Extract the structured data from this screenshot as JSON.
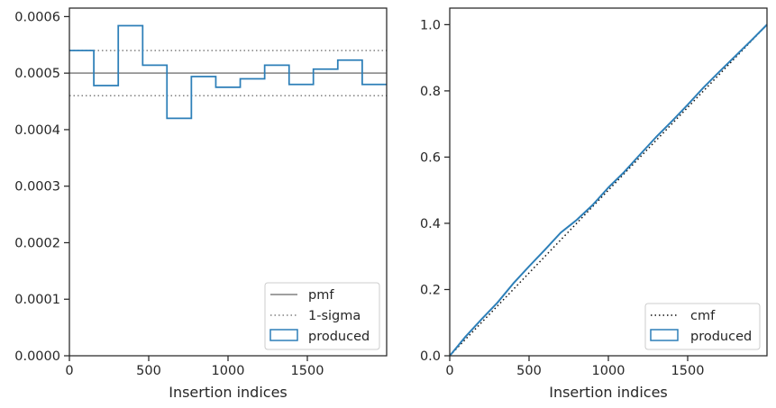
{
  "chart_data": [
    {
      "type": "histogram-step",
      "xlabel": "Insertion indices",
      "ylabel": "",
      "xlim": [
        0,
        2000
      ],
      "ylim": [
        0,
        0.000615
      ],
      "x_ticks": [
        0,
        500,
        1000,
        1500
      ],
      "x_tick_labels": [
        "0",
        "500",
        "1000",
        "1500"
      ],
      "y_ticks": [
        0,
        0.0001,
        0.0002,
        0.0003,
        0.0004,
        0.0005,
        0.0006
      ],
      "y_tick_labels": [
        "0.0000",
        "0.0001",
        "0.0002",
        "0.0003",
        "0.0004",
        "0.0005",
        "0.0006"
      ],
      "bin_edges": [
        0,
        154,
        308,
        462,
        615,
        769,
        923,
        1077,
        1231,
        1385,
        1538,
        1692,
        1846,
        2000
      ],
      "series": [
        {
          "name": "produced",
          "style": "step",
          "color": "#2d7fb8",
          "values": [
            0.00054,
            0.000478,
            0.000584,
            0.000514,
            0.00042,
            0.000494,
            0.000475,
            0.00049,
            0.000514,
            0.00048,
            0.000507,
            0.000523,
            0.00048
          ]
        },
        {
          "name": "pmf",
          "style": "solid",
          "color": "#808080",
          "values": [
            0.0005
          ]
        },
        {
          "name": "1-sigma",
          "style": "dotted",
          "color": "#808080",
          "values": [
            0.00054,
            0.00046
          ]
        }
      ],
      "legend": {
        "position": "lower right",
        "entries": [
          "pmf",
          "1-sigma",
          "produced"
        ]
      },
      "grid": false
    },
    {
      "type": "line",
      "xlabel": "Insertion indices",
      "ylabel": "",
      "xlim": [
        0,
        2000
      ],
      "ylim": [
        0,
        1.05
      ],
      "x_ticks": [
        0,
        500,
        1000,
        1500
      ],
      "x_tick_labels": [
        "0",
        "500",
        "1000",
        "1500"
      ],
      "y_ticks": [
        0,
        0.2,
        0.4,
        0.6,
        0.8,
        1.0
      ],
      "y_tick_labels": [
        "0.0",
        "0.2",
        "0.4",
        "0.6",
        "0.8",
        "1.0"
      ],
      "series": [
        {
          "name": "cmf",
          "style": "dotted",
          "color": "#111111",
          "x": [
            0,
            2000
          ],
          "y": [
            0,
            1.0
          ]
        },
        {
          "name": "produced",
          "style": "solid",
          "color": "#2d7fb8",
          "x": [
            0,
            100,
            200,
            300,
            400,
            500,
            600,
            700,
            800,
            900,
            1000,
            1100,
            1200,
            1300,
            1400,
            1500,
            1600,
            1700,
            1800,
            1900,
            2000
          ],
          "y": [
            0,
            0.058,
            0.11,
            0.16,
            0.218,
            0.27,
            0.32,
            0.372,
            0.41,
            0.455,
            0.508,
            0.555,
            0.608,
            0.66,
            0.708,
            0.758,
            0.81,
            0.858,
            0.905,
            0.952,
            1.0
          ]
        }
      ],
      "legend": {
        "position": "lower right",
        "entries": [
          "cmf",
          "produced"
        ]
      },
      "grid": false
    }
  ]
}
